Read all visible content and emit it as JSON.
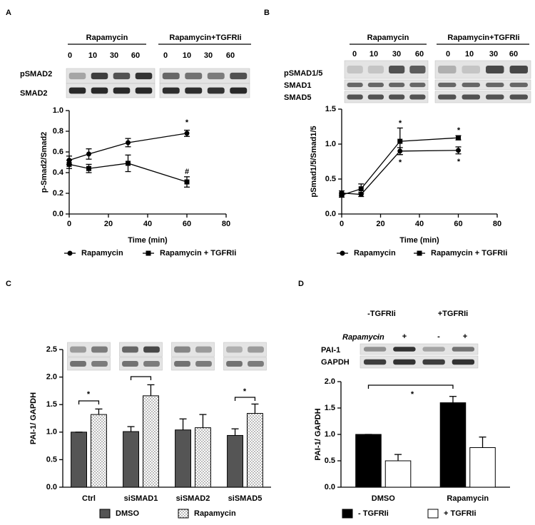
{
  "chart_data": [
    {
      "type": "line",
      "panel": "A",
      "blot": {
        "groups": [
          "Rapamycin",
          "Rapamycin+TGFRIi"
        ],
        "lanes": [
          "0",
          "10",
          "30",
          "60"
        ],
        "rows": [
          "pSMAD2",
          "SMAD2"
        ]
      },
      "x": [
        0,
        10,
        30,
        60
      ],
      "xlim": [
        0,
        80
      ],
      "xticks": [
        0,
        20,
        40,
        60,
        80
      ],
      "ylim": [
        0,
        1
      ],
      "yticks": [
        {
          "value": 0,
          "label": "0.0"
        },
        0.2,
        0.4,
        0.6,
        0.8,
        {
          "value": 1,
          "label": "1.0"
        }
      ],
      "xlabel": "Time (min)",
      "ylabel": "p-Smad2/Smad2",
      "series": [
        {
          "name": "Rapamycin",
          "marker": "circle",
          "color": "#000000",
          "values": [
            0.52,
            0.58,
            0.69,
            0.78
          ],
          "errors": [
            0.04,
            0.05,
            0.04,
            0.03
          ]
        },
        {
          "name": "Rapamycin + TGFRIi",
          "marker": "square",
          "color": "#000000",
          "values": [
            0.48,
            0.44,
            0.49,
            0.31
          ],
          "errors": [
            0.04,
            0.04,
            0.08,
            0.05
          ]
        }
      ],
      "annotations": [
        "*",
        "#"
      ],
      "legend": "bottom"
    },
    {
      "type": "line",
      "panel": "B",
      "blot": {
        "groups": [
          "Rapamycin",
          "Rapamycin+TGFRIi"
        ],
        "lanes": [
          "0",
          "10",
          "30",
          "60"
        ],
        "rows": [
          "pSMAD1/5",
          "SMAD1",
          "SMAD5"
        ]
      },
      "x": [
        0,
        10,
        30,
        60
      ],
      "xlim": [
        0,
        80
      ],
      "xticks": [
        0,
        20,
        40,
        60,
        80
      ],
      "ylim": [
        0,
        1.5
      ],
      "yticks": [
        {
          "value": 0,
          "label": "0.0"
        },
        0.5,
        {
          "value": 1,
          "label": "1.0"
        },
        1.5
      ],
      "xlabel": "Time (min)",
      "ylabel": "pSmad1/5/Smad1/5",
      "series": [
        {
          "name": "Rapamycin",
          "marker": "circle",
          "color": "#000000",
          "values": [
            0.3,
            0.28,
            0.9,
            0.91
          ],
          "errors": [
            0.03,
            0.03,
            0.05,
            0.05
          ]
        },
        {
          "name": "Rapamycin + TGFRIi",
          "marker": "square",
          "color": "#000000",
          "values": [
            0.27,
            0.36,
            1.04,
            1.09
          ],
          "errors": [
            0.03,
            0.07,
            0.19,
            0.03
          ]
        }
      ],
      "annotations": [
        "*",
        "*",
        "*",
        "*"
      ],
      "legend": "bottom"
    },
    {
      "type": "bar",
      "panel": "C",
      "categories": [
        "Ctrl",
        "siSMAD1",
        "siSMAD2",
        "siSMAD5"
      ],
      "ylim": [
        0,
        2.5
      ],
      "yticks": [
        {
          "value": 0,
          "label": "0.0"
        },
        0.5,
        {
          "value": 1,
          "label": "1.0"
        },
        1.5,
        {
          "value": 2,
          "label": "2.0"
        },
        2.5
      ],
      "ylabel": "PAI-1/ GAPDH",
      "series": [
        {
          "name": "DMSO",
          "color": "#555555",
          "pattern": "none",
          "values": [
            1.0,
            1.01,
            1.04,
            0.94
          ],
          "errors": [
            0,
            0.09,
            0.2,
            0.12
          ]
        },
        {
          "name": "Rapamycin",
          "color": "#ffffff",
          "pattern": "dots",
          "values": [
            1.32,
            1.66,
            1.08,
            1.34
          ],
          "errors": [
            0.1,
            0.2,
            0.24,
            0.17
          ]
        }
      ],
      "annotations": [
        "*",
        "*"
      ],
      "legend": "bottom"
    },
    {
      "type": "bar",
      "panel": "D",
      "blot": {
        "groups": [
          "-TGFRIi",
          "+TGFRIi"
        ],
        "treatment": "Rapamycin",
        "signs": [
          "-",
          "+"
        ],
        "rows": [
          "PAI-1",
          "GAPDH"
        ]
      },
      "categories": [
        "DMSO",
        "Rapamycin"
      ],
      "ylim": [
        0,
        2
      ],
      "yticks": [
        {
          "value": 0,
          "label": "0.0"
        },
        0.5,
        {
          "value": 1,
          "label": "1.0"
        },
        1.5,
        {
          "value": 2,
          "label": "2.0"
        }
      ],
      "ylabel": "PAI-1/ GAPDH",
      "series": [
        {
          "name": "- TGFRIi",
          "color": "#000000",
          "pattern": "none",
          "values": [
            1.0,
            1.6
          ],
          "errors": [
            0,
            0.12
          ]
        },
        {
          "name": "+ TGFRIi",
          "color": "#ffffff",
          "pattern": "none",
          "values": [
            0.5,
            0.75
          ],
          "errors": [
            0.12,
            0.2
          ]
        }
      ],
      "annotations": [
        "*"
      ],
      "legend": "bottom"
    }
  ]
}
